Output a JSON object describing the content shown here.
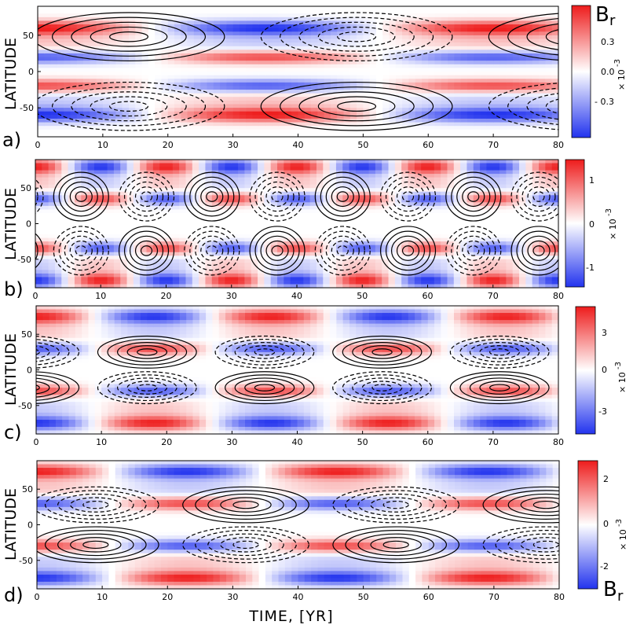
{
  "x_axis_label": "TIME,  [YR]",
  "colormap": {
    "negative": "#2233ee",
    "zero": "#ffffff",
    "positive": "#ee1c1c"
  },
  "contour_style": {
    "positive_lines": "solid",
    "negative_lines": "dashed",
    "color": "#000000"
  },
  "chart_data": [
    {
      "type": "heatmap",
      "panel_label": "a)",
      "xlabel": "",
      "ylabel": "LATITUDE",
      "xlim": [
        0,
        80
      ],
      "ylim": [
        -90,
        90
      ],
      "xticks": [
        "0",
        "10",
        "20",
        "30",
        "40",
        "50",
        "60",
        "70",
        "80"
      ],
      "yticks": [
        "50",
        "0",
        "-50"
      ],
      "colorbar": {
        "title": "B",
        "title_sub": "r",
        "multiplier": "× 10",
        "multiplier_exp": "-3",
        "ticks": [
          "0.3",
          "0.0",
          "- 0.3"
        ],
        "range": [
          -0.5,
          0.5
        ]
      },
      "field": {
        "period_years": 70,
        "phase_years": 0,
        "pole_band_lat": 60,
        "equator_band_lat": 20
      },
      "contours": {
        "period_years": 70,
        "phase_years": 14,
        "center_lat": 48
      }
    },
    {
      "type": "heatmap",
      "panel_label": "b)",
      "xlabel": "",
      "ylabel": "LATITUDE",
      "xlim": [
        0,
        80
      ],
      "ylim": [
        -90,
        90
      ],
      "xticks": [
        "0",
        "10",
        "20",
        "30",
        "40",
        "50",
        "60",
        "70",
        "80"
      ],
      "yticks": [
        "50",
        "0",
        "-50"
      ],
      "colorbar": {
        "title": "",
        "title_sub": "",
        "multiplier": "× 10",
        "multiplier_exp": "-3",
        "ticks": [
          "1",
          "0",
          "-1"
        ],
        "range": [
          -1.5,
          1.5
        ]
      },
      "field": {
        "period_years": 20,
        "phase_years": 0,
        "pole_band_lat": 80,
        "equator_band_lat": 35
      },
      "contours": {
        "period_years": 20,
        "phase_years": 7,
        "center_lat": 38
      }
    },
    {
      "type": "heatmap",
      "panel_label": "c)",
      "xlabel": "",
      "ylabel": "LATITUDE",
      "xlim": [
        0,
        80
      ],
      "ylim": [
        -90,
        90
      ],
      "xticks": [
        "0",
        "10",
        "20",
        "30",
        "40",
        "50",
        "60",
        "70",
        "80"
      ],
      "yticks": [
        "50",
        "0",
        "-50"
      ],
      "colorbar": {
        "title": "",
        "title_sub": "",
        "multiplier": "× 10",
        "multiplier_exp": "-3",
        "ticks": [
          "3",
          "0",
          "-3"
        ],
        "range": [
          -4.5,
          4.5
        ]
      },
      "field": {
        "period_years": 36,
        "phase_years": 0,
        "pole_band_lat": 75,
        "equator_band_lat": 30
      },
      "contours": {
        "period_years": 36,
        "phase_years": 17,
        "center_lat": 25
      }
    },
    {
      "type": "heatmap",
      "panel_label": "d)",
      "xlabel": "TIME,  [YR]",
      "ylabel": "LATITUDE",
      "xlim": [
        0,
        80
      ],
      "ylim": [
        -90,
        90
      ],
      "xticks": [
        "0",
        "10",
        "20",
        "30",
        "40",
        "50",
        "60",
        "70",
        "80"
      ],
      "yticks": [
        "50",
        "0",
        "-50"
      ],
      "colorbar": {
        "title": "B",
        "title_sub": "r",
        "multiplier": "× 10",
        "multiplier_exp": "-3",
        "ticks": [
          "2",
          "0",
          "-2"
        ],
        "range": [
          -3,
          3
        ]
      },
      "field": {
        "period_years": 46,
        "phase_years": 0,
        "pole_band_lat": 75,
        "equator_band_lat": 30
      },
      "contours": {
        "period_years": 46,
        "phase_years": 32,
        "center_lat": 28
      }
    }
  ]
}
